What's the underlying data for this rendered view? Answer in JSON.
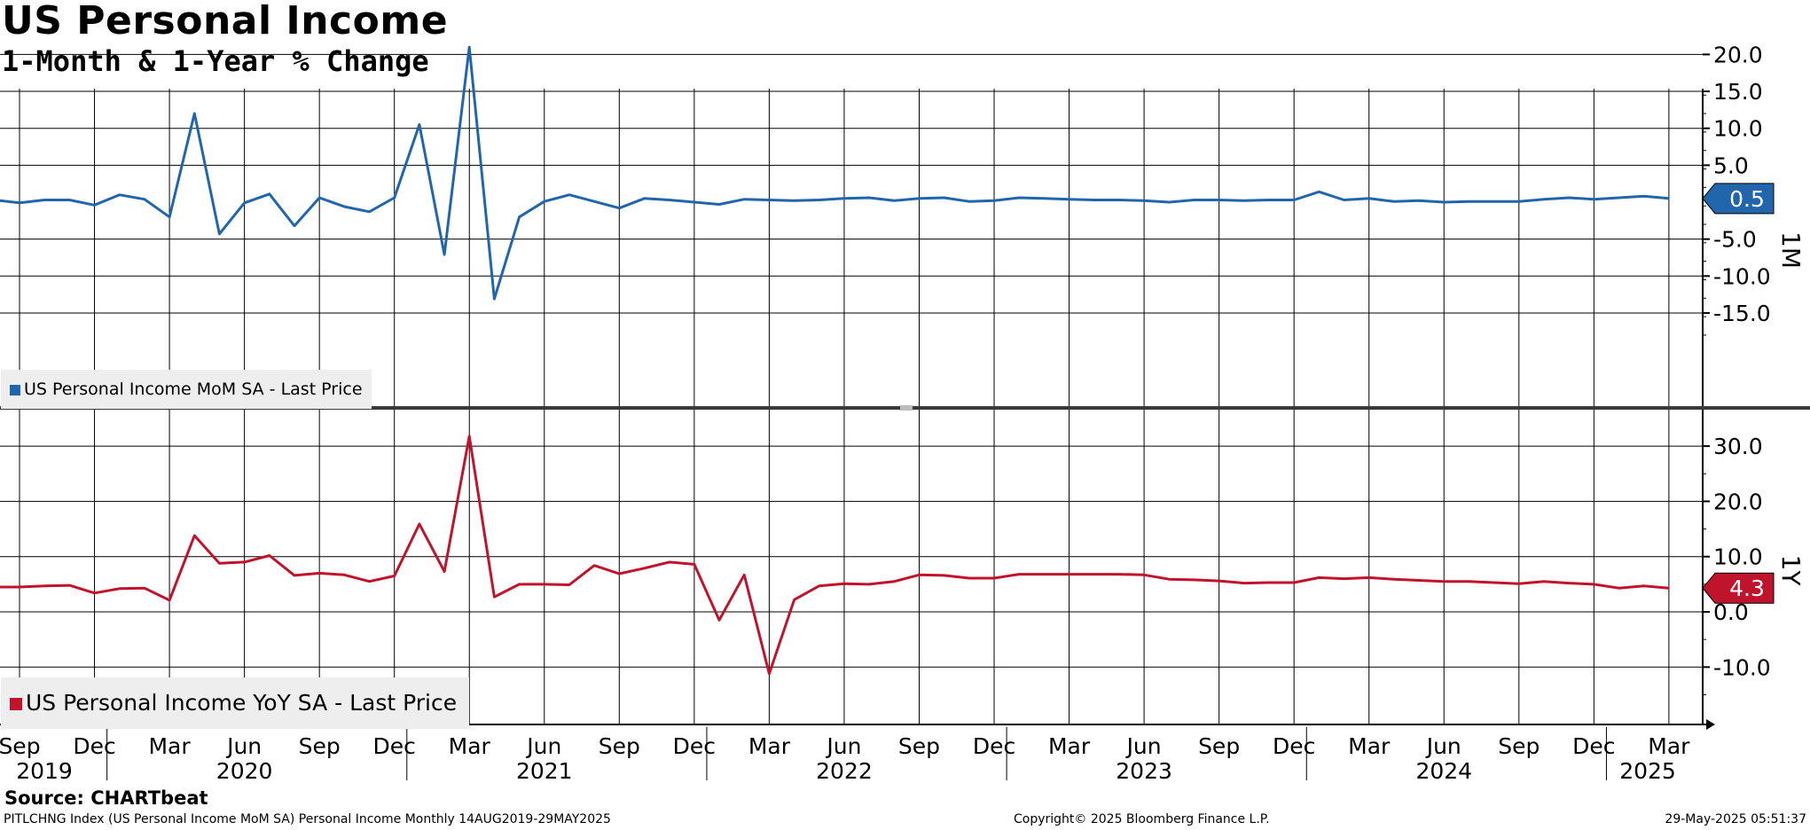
{
  "header": {
    "title": "US Personal Income",
    "subtitle": "1-Month & 1-Year % Change"
  },
  "footer": {
    "source": "Source: CHARTbeat",
    "description": "PITLCHNG Index (US Personal Income MoM SA) Personal Income  Monthly 14AUG2019-29MAY2025",
    "copyright": "Copyright© 2025 Bloomberg Finance L.P.",
    "timestamp": "29-May-2025 05:51:37"
  },
  "colors": {
    "mom": "#2166ac",
    "yoy": "#c0142c",
    "grid": "#000000",
    "divider": "#3a3a3a",
    "legend_bg": "#eeeeee"
  },
  "chart_data": [
    {
      "type": "line",
      "panel": "1M",
      "axis_label": "1M",
      "legend": "US Personal Income MoM SA - Last Price",
      "last_value_label": "0.5",
      "last_value": 0.5,
      "x_start": "2019-08",
      "x_end": "2025-04",
      "ylim": [
        -18,
        22
      ],
      "yticks": [
        -15,
        -10,
        -5,
        5,
        10,
        15,
        20
      ],
      "ytick_labels": [
        "-15.0",
        "-10.0",
        "-5.0",
        "5.0",
        "10.0",
        "15.0",
        "20.0"
      ],
      "grid": true,
      "legend_position": "bottom-left",
      "series": [
        {
          "name": "US Personal Income MoM SA - Last Price",
          "x": [
            "2019-08",
            "2019-09",
            "2019-10",
            "2019-11",
            "2019-12",
            "2020-01",
            "2020-02",
            "2020-03",
            "2020-04",
            "2020-05",
            "2020-06",
            "2020-07",
            "2020-08",
            "2020-09",
            "2020-10",
            "2020-11",
            "2020-12",
            "2021-01",
            "2021-02",
            "2021-03",
            "2021-04",
            "2021-05",
            "2021-06",
            "2021-07",
            "2021-08",
            "2021-09",
            "2021-10",
            "2021-11",
            "2021-12",
            "2022-01",
            "2022-02",
            "2022-03",
            "2022-04",
            "2022-05",
            "2022-06",
            "2022-07",
            "2022-08",
            "2022-09",
            "2022-10",
            "2022-11",
            "2022-12",
            "2023-01",
            "2023-02",
            "2023-03",
            "2023-04",
            "2023-05",
            "2023-06",
            "2023-07",
            "2023-08",
            "2023-09",
            "2023-10",
            "2023-11",
            "2023-12",
            "2024-01",
            "2024-02",
            "2024-03",
            "2024-04",
            "2024-05",
            "2024-06",
            "2024-07",
            "2024-08",
            "2024-09",
            "2024-10",
            "2024-11",
            "2024-12",
            "2025-01",
            "2025-02",
            "2025-03"
          ],
          "values": [
            0.3,
            -0.1,
            0.3,
            0.3,
            -0.4,
            1.0,
            0.4,
            -2.0,
            12.0,
            -4.3,
            -0.1,
            1.1,
            -3.2,
            0.6,
            -0.6,
            -1.3,
            0.6,
            10.5,
            -7.1,
            21.0,
            -13.1,
            -2.0,
            0.1,
            1.0,
            0.1,
            -0.8,
            0.5,
            0.3,
            0.0,
            -0.3,
            0.4,
            0.3,
            0.2,
            0.3,
            0.5,
            0.6,
            0.2,
            0.5,
            0.6,
            0.1,
            0.2,
            0.6,
            0.5,
            0.4,
            0.3,
            0.3,
            0.2,
            0.0,
            0.3,
            0.3,
            0.2,
            0.3,
            0.3,
            1.4,
            0.3,
            0.5,
            0.1,
            0.2,
            0.0,
            0.1,
            0.1,
            0.1,
            0.4,
            0.6,
            0.4,
            0.6,
            0.8,
            0.5
          ]
        }
      ]
    },
    {
      "type": "line",
      "panel": "1Y",
      "axis_label": "1Y",
      "legend": "US Personal Income YoY SA - Last Price",
      "last_value_label": "4.3",
      "last_value": 4.3,
      "x_start": "2019-08",
      "x_end": "2025-04",
      "ylim": [
        -15,
        33
      ],
      "yticks": [
        -10,
        0,
        10,
        20,
        30
      ],
      "ytick_labels": [
        "-10.0",
        "0.0",
        "10.0",
        "20.0",
        "30.0"
      ],
      "grid": true,
      "legend_position": "bottom-left",
      "series": [
        {
          "name": "US Personal Income YoY SA - Last Price",
          "x": [
            "2019-08",
            "2019-09",
            "2019-10",
            "2019-11",
            "2019-12",
            "2020-01",
            "2020-02",
            "2020-03",
            "2020-04",
            "2020-05",
            "2020-06",
            "2020-07",
            "2020-08",
            "2020-09",
            "2020-10",
            "2020-11",
            "2020-12",
            "2021-01",
            "2021-02",
            "2021-03",
            "2021-04",
            "2021-05",
            "2021-06",
            "2021-07",
            "2021-08",
            "2021-09",
            "2021-10",
            "2021-11",
            "2021-12",
            "2022-01",
            "2022-02",
            "2022-03",
            "2022-04",
            "2022-05",
            "2022-06",
            "2022-07",
            "2022-08",
            "2022-09",
            "2022-10",
            "2022-11",
            "2022-12",
            "2023-01",
            "2023-02",
            "2023-03",
            "2023-04",
            "2023-05",
            "2023-06",
            "2023-07",
            "2023-08",
            "2023-09",
            "2023-10",
            "2023-11",
            "2023-12",
            "2024-01",
            "2024-02",
            "2024-03",
            "2024-04",
            "2024-05",
            "2024-06",
            "2024-07",
            "2024-08",
            "2024-09",
            "2024-10",
            "2024-11",
            "2024-12",
            "2025-01",
            "2025-02",
            "2025-03"
          ],
          "values": [
            4.5,
            4.5,
            4.7,
            4.8,
            3.4,
            4.2,
            4.3,
            2.1,
            13.8,
            8.8,
            9.0,
            10.2,
            6.6,
            7.0,
            6.7,
            5.5,
            6.5,
            15.9,
            7.3,
            31.8,
            2.7,
            5.0,
            5.0,
            4.9,
            8.4,
            6.9,
            7.9,
            9.0,
            8.6,
            -1.5,
            6.7,
            -11.2,
            2.2,
            4.7,
            5.1,
            5.0,
            5.5,
            6.7,
            6.6,
            6.1,
            6.1,
            6.8,
            6.8,
            6.8,
            6.8,
            6.8,
            6.7,
            5.9,
            5.8,
            5.6,
            5.2,
            5.3,
            5.3,
            6.2,
            6.0,
            6.2,
            5.9,
            5.7,
            5.5,
            5.5,
            5.3,
            5.1,
            5.5,
            5.2,
            5.0,
            4.3,
            4.7,
            4.3
          ]
        }
      ]
    }
  ],
  "x_axis": {
    "month_labels": [
      "Sep",
      "Dec",
      "Mar",
      "Jun",
      "Sep",
      "Dec",
      "Mar",
      "Jun",
      "Sep",
      "Dec",
      "Mar",
      "Jun",
      "Sep",
      "Dec",
      "Mar",
      "Jun",
      "Sep",
      "Dec",
      "Mar",
      "Jun",
      "Sep",
      "Dec",
      "Mar"
    ],
    "month_dates": [
      "2019-09",
      "2019-12",
      "2020-03",
      "2020-06",
      "2020-09",
      "2020-12",
      "2021-03",
      "2021-06",
      "2021-09",
      "2021-12",
      "2022-03",
      "2022-06",
      "2022-09",
      "2022-12",
      "2023-03",
      "2023-06",
      "2023-09",
      "2023-12",
      "2024-03",
      "2024-06",
      "2024-09",
      "2024-12",
      "2025-03"
    ],
    "year_labels": [
      "2019",
      "2020",
      "2021",
      "2022",
      "2023",
      "2024",
      "2025"
    ]
  }
}
